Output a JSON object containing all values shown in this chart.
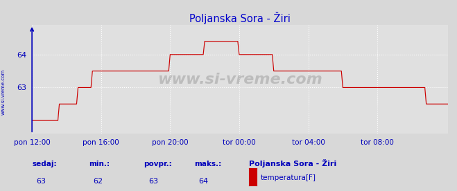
{
  "title": "Poljanska Sora - Žiri",
  "bg_color": "#d8d8d8",
  "plot_bg_color": "#e0e0e0",
  "grid_color": "#ffffff",
  "line_color": "#cc0000",
  "axis_color": "#0000bb",
  "title_color": "#0000cc",
  "x_tick_labels": [
    "pon 12:00",
    "pon 16:00",
    "pon 20:00",
    "tor 00:00",
    "tor 04:00",
    "tor 08:00"
  ],
  "x_tick_positions": [
    0,
    48,
    96,
    144,
    192,
    240
  ],
  "ylim_bottom": 61.6,
  "ylim_top": 64.9,
  "yticks": [
    63,
    64
  ],
  "ylabel_left": "www.si-vreme.com",
  "total_points": 288,
  "data": [
    62.0,
    62.0,
    62.0,
    62.0,
    62.0,
    62.0,
    62.0,
    62.0,
    62.0,
    62.0,
    62.0,
    62.0,
    62.0,
    62.0,
    62.0,
    62.0,
    62.0,
    62.0,
    62.0,
    62.5,
    62.5,
    62.5,
    62.5,
    62.5,
    62.5,
    62.5,
    62.5,
    62.5,
    62.5,
    62.5,
    62.5,
    62.5,
    63.0,
    63.0,
    63.0,
    63.0,
    63.0,
    63.0,
    63.0,
    63.0,
    63.0,
    63.0,
    63.5,
    63.5,
    63.5,
    63.5,
    63.5,
    63.5,
    63.5,
    63.5,
    63.5,
    63.5,
    63.5,
    63.5,
    63.5,
    63.5,
    63.5,
    63.5,
    63.5,
    63.5,
    63.5,
    63.5,
    63.5,
    63.5,
    63.5,
    63.5,
    63.5,
    63.5,
    63.5,
    63.5,
    63.5,
    63.5,
    63.5,
    63.5,
    63.5,
    63.5,
    63.5,
    63.5,
    63.5,
    63.5,
    63.5,
    63.5,
    63.5,
    63.5,
    63.5,
    63.5,
    63.5,
    63.5,
    63.5,
    63.5,
    63.5,
    63.5,
    63.5,
    63.5,
    63.5,
    63.5,
    64.0,
    64.0,
    64.0,
    64.0,
    64.0,
    64.0,
    64.0,
    64.0,
    64.0,
    64.0,
    64.0,
    64.0,
    64.0,
    64.0,
    64.0,
    64.0,
    64.0,
    64.0,
    64.0,
    64.0,
    64.0,
    64.0,
    64.0,
    64.0,
    64.4,
    64.4,
    64.4,
    64.4,
    64.4,
    64.4,
    64.4,
    64.4,
    64.4,
    64.4,
    64.4,
    64.4,
    64.4,
    64.4,
    64.4,
    64.4,
    64.4,
    64.4,
    64.4,
    64.4,
    64.4,
    64.4,
    64.4,
    64.4,
    64.0,
    64.0,
    64.0,
    64.0,
    64.0,
    64.0,
    64.0,
    64.0,
    64.0,
    64.0,
    64.0,
    64.0,
    64.0,
    64.0,
    64.0,
    64.0,
    64.0,
    64.0,
    64.0,
    64.0,
    64.0,
    64.0,
    64.0,
    64.0,
    63.5,
    63.5,
    63.5,
    63.5,
    63.5,
    63.5,
    63.5,
    63.5,
    63.5,
    63.5,
    63.5,
    63.5,
    63.5,
    63.5,
    63.5,
    63.5,
    63.5,
    63.5,
    63.5,
    63.5,
    63.5,
    63.5,
    63.5,
    63.5,
    63.5,
    63.5,
    63.5,
    63.5,
    63.5,
    63.5,
    63.5,
    63.5,
    63.5,
    63.5,
    63.5,
    63.5,
    63.5,
    63.5,
    63.5,
    63.5,
    63.5,
    63.5,
    63.5,
    63.5,
    63.5,
    63.5,
    63.5,
    63.5,
    63.0,
    63.0,
    63.0,
    63.0,
    63.0,
    63.0,
    63.0,
    63.0,
    63.0,
    63.0,
    63.0,
    63.0,
    63.0,
    63.0,
    63.0,
    63.0,
    63.0,
    63.0,
    63.0,
    63.0,
    63.0,
    63.0,
    63.0,
    63.0,
    63.0,
    63.0,
    63.0,
    63.0,
    63.0,
    63.0,
    63.0,
    63.0,
    63.0,
    63.0,
    63.0,
    63.0,
    63.0,
    63.0,
    63.0,
    63.0,
    63.0,
    63.0,
    63.0,
    63.0,
    63.0,
    63.0,
    63.0,
    63.0,
    63.0,
    63.0,
    63.0,
    63.0,
    63.0,
    63.0,
    63.0,
    63.0,
    63.0,
    63.0,
    62.5,
    62.5,
    62.5,
    62.5,
    62.5,
    62.5,
    62.5,
    62.5,
    62.5,
    62.5,
    62.5,
    62.5,
    62.5,
    62.5,
    62.5,
    62.5
  ],
  "footer_labels": [
    "sedaj:",
    "min.:",
    "povpr.:",
    "maks.:"
  ],
  "footer_values": [
    "63",
    "62",
    "63",
    "64"
  ],
  "legend_label": "temperatura[F]",
  "legend_station": "Poljanska Sora - Žiri",
  "legend_color": "#cc0000",
  "watermark": "www.si-vreme.com"
}
